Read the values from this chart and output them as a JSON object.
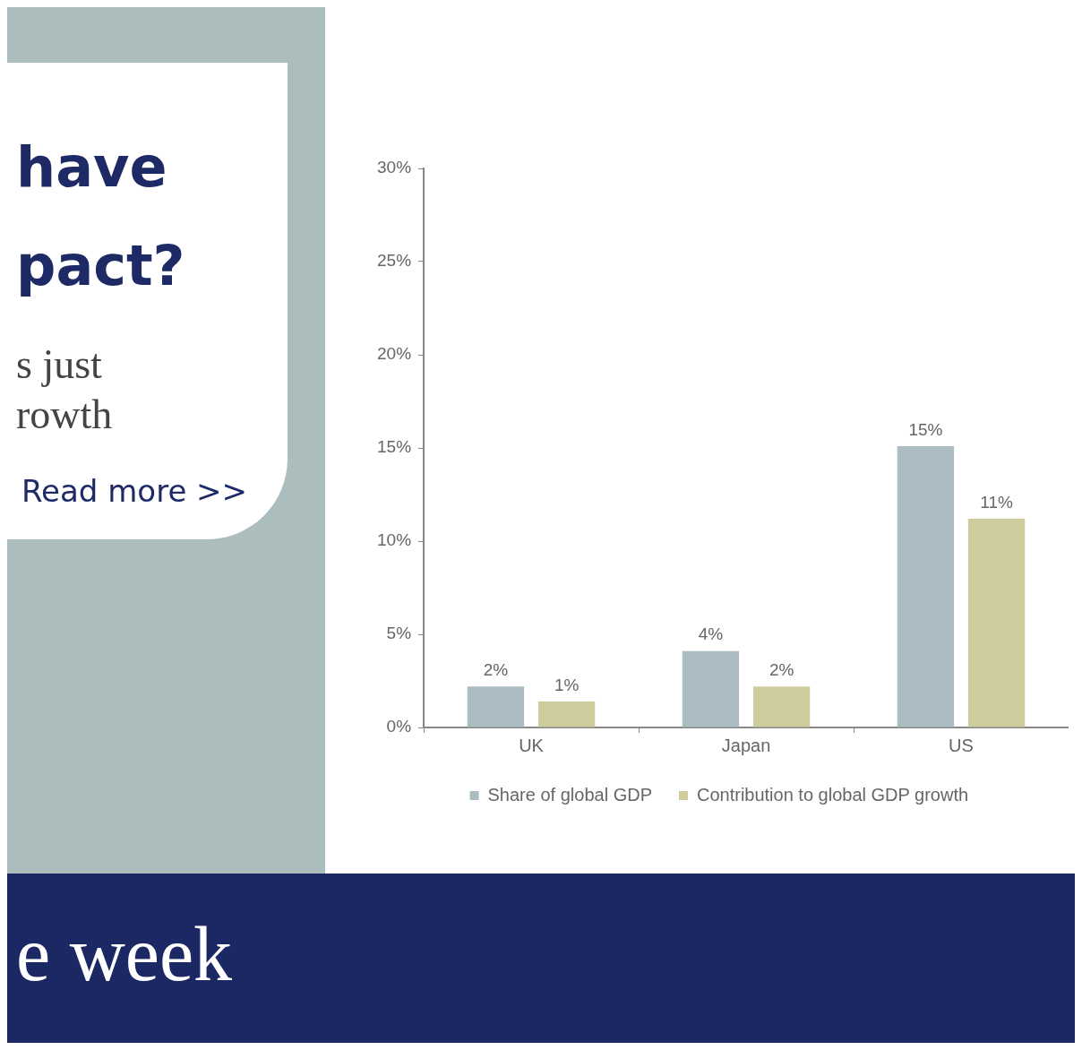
{
  "chart_data": {
    "type": "bar",
    "categories": [
      "UK",
      "Japan",
      "US"
    ],
    "series": [
      {
        "name": "Share of global GDP",
        "color": "#abbdc2",
        "values": [
          2.2,
          4.1,
          15.1
        ],
        "value_labels": [
          "2%",
          "4%",
          "15%"
        ]
      },
      {
        "name": "Contribution to global GDP growth",
        "color": "#cfcc9e",
        "values": [
          1.4,
          2.2,
          11.2
        ],
        "value_labels": [
          "1%",
          "2%",
          "11%"
        ]
      }
    ],
    "ylim": [
      0,
      30
    ],
    "yticks": [
      {
        "value": 0,
        "label": "0%"
      },
      {
        "value": 5,
        "label": "5%"
      },
      {
        "value": 10,
        "label": "10%"
      },
      {
        "value": 15,
        "label": "15%"
      },
      {
        "value": 20,
        "label": "20%"
      },
      {
        "value": 25,
        "label": "25%"
      },
      {
        "value": 30,
        "label": "30%"
      }
    ],
    "legend": "bottom",
    "grid": false,
    "annotations": [
      "have",
      "pact?",
      "s just",
      "rowth",
      "Read more >>",
      "e week"
    ]
  }
}
